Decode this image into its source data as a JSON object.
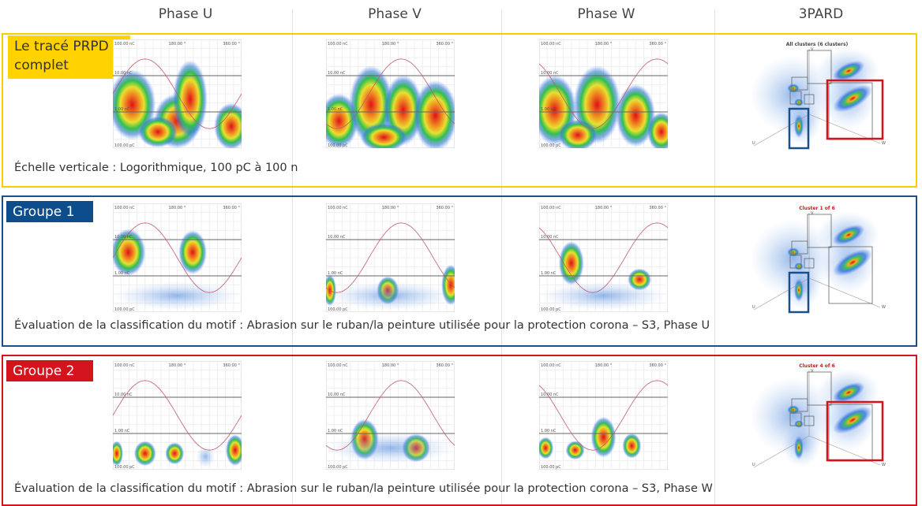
{
  "header": {
    "columns": [
      "Phase U",
      "Phase V",
      "Phase W",
      "3PARD"
    ]
  },
  "prpd_axis": {
    "top": "100.00 nC",
    "upper": "10.00 nC",
    "lower": "1.00 nC",
    "bottom": "100.00 pC",
    "mid_angle": "180.00 °",
    "end_angle": "360.00 °"
  },
  "pard_axes": [
    "U",
    "V",
    "W"
  ],
  "sections": [
    {
      "label": "Le tracé PRPD complet",
      "cluster_title": "All clusters (6 clusters)",
      "caption": "Échelle verticale : Logorithmique, 100 pC à 100 n"
    },
    {
      "label": "Groupe 1",
      "cluster_title": "Cluster 1 of 6",
      "caption": "Évaluation de la classification du motif : Abrasion sur le ruban/la peinture utilisée pour la protection corona – S3, Phase U"
    },
    {
      "label": "Groupe 2",
      "cluster_title": "Cluster 4 of 6",
      "caption": "Évaluation de la classification du motif : Abrasion sur le ruban/la peinture utilisée pour la protection corona – S3, Phase W"
    }
  ]
}
